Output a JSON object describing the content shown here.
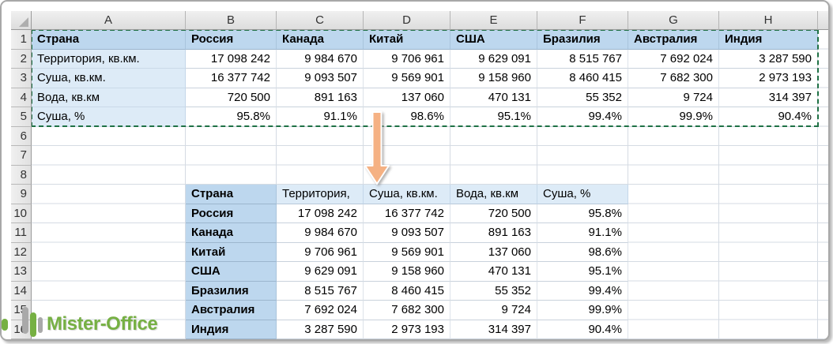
{
  "sheet": {
    "column_headers": [
      "A",
      "B",
      "C",
      "D",
      "E",
      "F",
      "G",
      "H"
    ],
    "row_numbers": [
      "1",
      "2",
      "3",
      "4",
      "5",
      "6",
      "7",
      "8",
      "9",
      "10",
      "11",
      "12",
      "13",
      "14",
      "15",
      "16"
    ]
  },
  "table_top": {
    "header_row": [
      "Страна",
      "Россия",
      "Канада",
      "Китай",
      "США",
      "Бразилия",
      "Австралия",
      "Индия"
    ],
    "rows": [
      {
        "label": "Территория, кв.км.",
        "values": [
          "17 098 242",
          "9 984 670",
          "9 706 961",
          "9 629 091",
          "8 515 767",
          "7 692 024",
          "3 287 590"
        ]
      },
      {
        "label": "Суша, кв.км.",
        "values": [
          "16 377 742",
          "9 093 507",
          "9 569 901",
          "9 158 960",
          "8 460 415",
          "7 682 300",
          "2 973 193"
        ]
      },
      {
        "label": "Вода, кв.км",
        "values": [
          "720 500",
          "891 163",
          "137 060",
          "470 131",
          "55 352",
          "9 724",
          "314 397"
        ]
      },
      {
        "label": "Суша, %",
        "values": [
          "95.8%",
          "91.1%",
          "98.6%",
          "95.1%",
          "99.4%",
          "99.9%",
          "90.4%"
        ]
      }
    ]
  },
  "table_transposed": {
    "header_row": [
      "Страна",
      "Территория,",
      "Суша, кв.км.",
      "Вода, кв.км",
      "Суша, %"
    ],
    "rows": [
      {
        "label": "Россия",
        "values": [
          "17 098 242",
          "16 377 742",
          "720 500",
          "95.8%"
        ]
      },
      {
        "label": "Канада",
        "values": [
          "9 984 670",
          "9 093 507",
          "891 163",
          "91.1%"
        ]
      },
      {
        "label": "Китай",
        "values": [
          "9 706 961",
          "9 569 901",
          "137 060",
          "98.6%"
        ]
      },
      {
        "label": "США",
        "values": [
          "9 629 091",
          "9 158 960",
          "470 131",
          "95.1%"
        ]
      },
      {
        "label": "Бразилия",
        "values": [
          "8 515 767",
          "8 460 415",
          "55 352",
          "99.4%"
        ]
      },
      {
        "label": "Австралия",
        "values": [
          "7 692 024",
          "7 682 300",
          "9 724",
          "99.9%"
        ]
      },
      {
        "label": "Индия",
        "values": [
          "3 287 590",
          "2 973 193",
          "314 397",
          "90.4%"
        ]
      }
    ]
  },
  "watermark": {
    "text": "Mister-Office"
  },
  "colors": {
    "header_fill": "#BDD7EE",
    "subheader_fill": "#DDEBF7",
    "selection_border": "#1F7145",
    "arrow_fill": "#F5B183",
    "logo_green": "#76B043",
    "logo_gray": "#A9A9A9"
  }
}
